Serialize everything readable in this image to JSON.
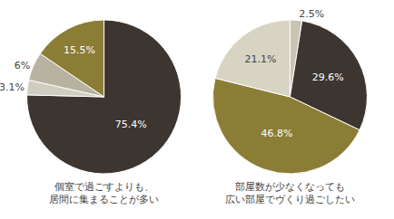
{
  "chart_data": [
    {
      "type": "pie",
      "title": "個室で過ごすよりも、\n居間に集まることが多い",
      "values": [
        75.4,
        3.1,
        6.0,
        15.5
      ],
      "value_labels": [
        "75.4%",
        "3.1%",
        "6%",
        "15.5%"
      ],
      "colors": [
        "#3d3530",
        "#d0cdc0",
        "#b8b3a0",
        "#8b7d35"
      ],
      "data_labels": true
    },
    {
      "type": "pie",
      "title": "部屋数が少なくなっても\n広い部屋でヴくり過ごしたい",
      "values": [
        2.5,
        29.6,
        46.8,
        21.1
      ],
      "value_labels": [
        "2.5%",
        "29.6%",
        "46.8%",
        "21.1%"
      ],
      "colors": [
        "#c8c4b4",
        "#3d3530",
        "#8b7d35",
        "#d8d4c4"
      ],
      "data_labels": true
    }
  ]
}
